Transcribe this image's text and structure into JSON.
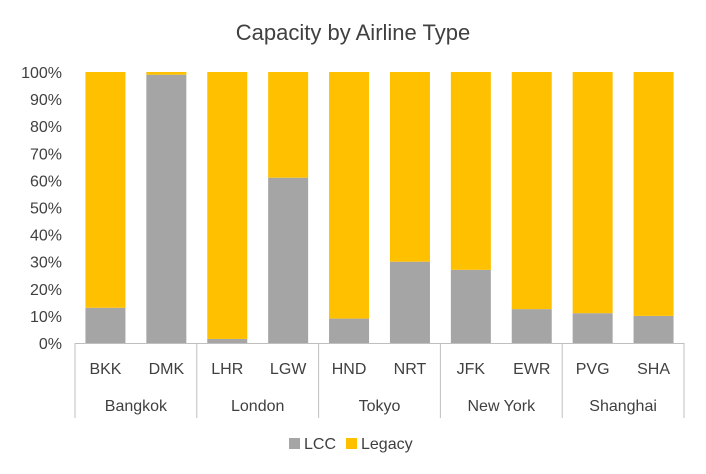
{
  "chart_data": {
    "type": "bar",
    "stacked": true,
    "title": "Capacity by Airline Type",
    "categories": [
      "BKK",
      "DMK",
      "LHR",
      "LGW",
      "HND",
      "NRT",
      "JFK",
      "EWR",
      "PVG",
      "SHA"
    ],
    "groups": [
      {
        "label": "Bangkok",
        "categories": [
          "BKK",
          "DMK"
        ]
      },
      {
        "label": "London",
        "categories": [
          "LHR",
          "LGW"
        ]
      },
      {
        "label": "Tokyo",
        "categories": [
          "HND",
          "NRT"
        ]
      },
      {
        "label": "New York",
        "categories": [
          "JFK",
          "EWR"
        ]
      },
      {
        "label": "Shanghai",
        "categories": [
          "PVG",
          "SHA"
        ]
      }
    ],
    "series": [
      {
        "name": "LCC",
        "color": "#A5A5A5",
        "values": [
          13,
          99,
          1.5,
          61,
          9,
          30,
          27,
          12.5,
          11,
          10
        ]
      },
      {
        "name": "Legacy",
        "color": "#FFC000",
        "values": [
          87,
          1,
          98.5,
          39,
          91,
          70,
          73,
          87.5,
          89,
          90
        ]
      }
    ],
    "ylim": [
      0,
      100
    ],
    "yticks": [
      "0%",
      "10%",
      "20%",
      "30%",
      "40%",
      "50%",
      "60%",
      "70%",
      "80%",
      "90%",
      "100%"
    ],
    "legend_position": "bottom"
  }
}
